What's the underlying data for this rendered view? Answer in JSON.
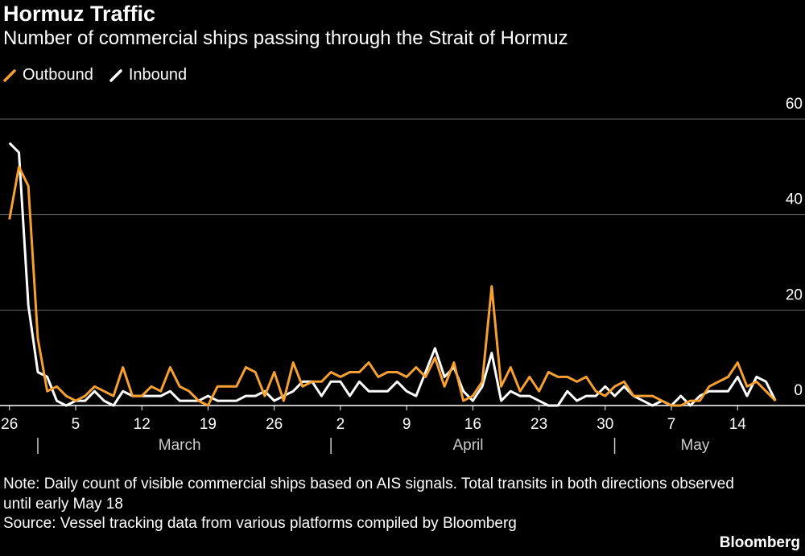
{
  "chart_data": {
    "type": "line",
    "title": "Hormuz Traffic",
    "subtitle": "Number of commercial ships passing through the Strait of Hormuz",
    "x": [
      "02-26",
      "02-27",
      "02-28",
      "03-01",
      "03-02",
      "03-03",
      "03-04",
      "03-05",
      "03-06",
      "03-07",
      "03-08",
      "03-09",
      "03-10",
      "03-11",
      "03-12",
      "03-13",
      "03-14",
      "03-15",
      "03-16",
      "03-17",
      "03-18",
      "03-19",
      "03-20",
      "03-21",
      "03-22",
      "03-23",
      "03-24",
      "03-25",
      "03-26",
      "03-27",
      "03-28",
      "03-29",
      "03-30",
      "03-31",
      "04-01",
      "04-02",
      "04-03",
      "04-04",
      "04-05",
      "04-06",
      "04-07",
      "04-08",
      "04-09",
      "04-10",
      "04-11",
      "04-12",
      "04-13",
      "04-14",
      "04-15",
      "04-16",
      "04-17",
      "04-18",
      "04-19",
      "04-20",
      "04-21",
      "04-22",
      "04-23",
      "04-24",
      "04-25",
      "04-26",
      "04-27",
      "04-28",
      "04-29",
      "04-30",
      "05-01",
      "05-02",
      "05-03",
      "05-04",
      "05-05",
      "05-06",
      "05-07",
      "05-08",
      "05-09",
      "05-10",
      "05-11",
      "05-12",
      "05-13",
      "05-14",
      "05-15",
      "05-16",
      "05-17",
      "05-18"
    ],
    "series": [
      {
        "name": "Outbound",
        "color": "#f7a032",
        "values": [
          39,
          50,
          46,
          14,
          3,
          4,
          2,
          1,
          2,
          4,
          3,
          2,
          8,
          2,
          2,
          4,
          3,
          8,
          4,
          3,
          1,
          0,
          4,
          4,
          4,
          8,
          7,
          2,
          7,
          1,
          9,
          4,
          5,
          5,
          7,
          6,
          7,
          7,
          9,
          6,
          7,
          7,
          6,
          8,
          6,
          10,
          4,
          9,
          1,
          2,
          5,
          25,
          4,
          8,
          3,
          6,
          3,
          7,
          6,
          6,
          5,
          6,
          3,
          2,
          4,
          5,
          2,
          2,
          2,
          1,
          0,
          0,
          1,
          1,
          4,
          5,
          6,
          9,
          4,
          5,
          3,
          1
        ]
      },
      {
        "name": "Inbound",
        "color": "#ffffff",
        "values": [
          55,
          53,
          21,
          7,
          6,
          1,
          0,
          1,
          1,
          3,
          1,
          0,
          3,
          2,
          2,
          2,
          2,
          3,
          1,
          1,
          1,
          2,
          1,
          1,
          1,
          2,
          2,
          3,
          1,
          2,
          3,
          5,
          5,
          2,
          5,
          5,
          2,
          5,
          3,
          3,
          3,
          5,
          3,
          2,
          7,
          12,
          6,
          8,
          3,
          1,
          4,
          11,
          1,
          3,
          2,
          2,
          1,
          0,
          0,
          3,
          1,
          2,
          2,
          4,
          2,
          4,
          2,
          1,
          0,
          1,
          0,
          2,
          0,
          2,
          3,
          3,
          3,
          6,
          2,
          6,
          5,
          1
        ]
      }
    ],
    "xlim": [
      "02-25",
      "05-19"
    ],
    "xticks": [
      {
        "value": "02-26",
        "label": "26"
      },
      {
        "value": "03-05",
        "label": "5"
      },
      {
        "value": "03-12",
        "label": "12"
      },
      {
        "value": "03-19",
        "label": "19"
      },
      {
        "value": "03-26",
        "label": "26"
      },
      {
        "value": "04-02",
        "label": "2"
      },
      {
        "value": "04-09",
        "label": "9"
      },
      {
        "value": "04-16",
        "label": "16"
      },
      {
        "value": "04-23",
        "label": "23"
      },
      {
        "value": "04-30",
        "label": "30"
      },
      {
        "value": "05-07",
        "label": "7"
      },
      {
        "value": "05-14",
        "label": "14"
      }
    ],
    "months": [
      {
        "value": "03",
        "label": "March"
      },
      {
        "value": "04",
        "label": "April"
      },
      {
        "value": "05",
        "label": "May"
      }
    ],
    "ylim": [
      0,
      60
    ],
    "yticks": [
      0,
      20,
      40,
      60
    ],
    "grid": true,
    "note": "Note: Daily count of visible commercial ships based on AIS signals. Total transits in both directions observed until early May 18",
    "source": "Source: Vessel tracking data from various platforms compiled by Bloomberg",
    "brand": "Bloomberg"
  }
}
